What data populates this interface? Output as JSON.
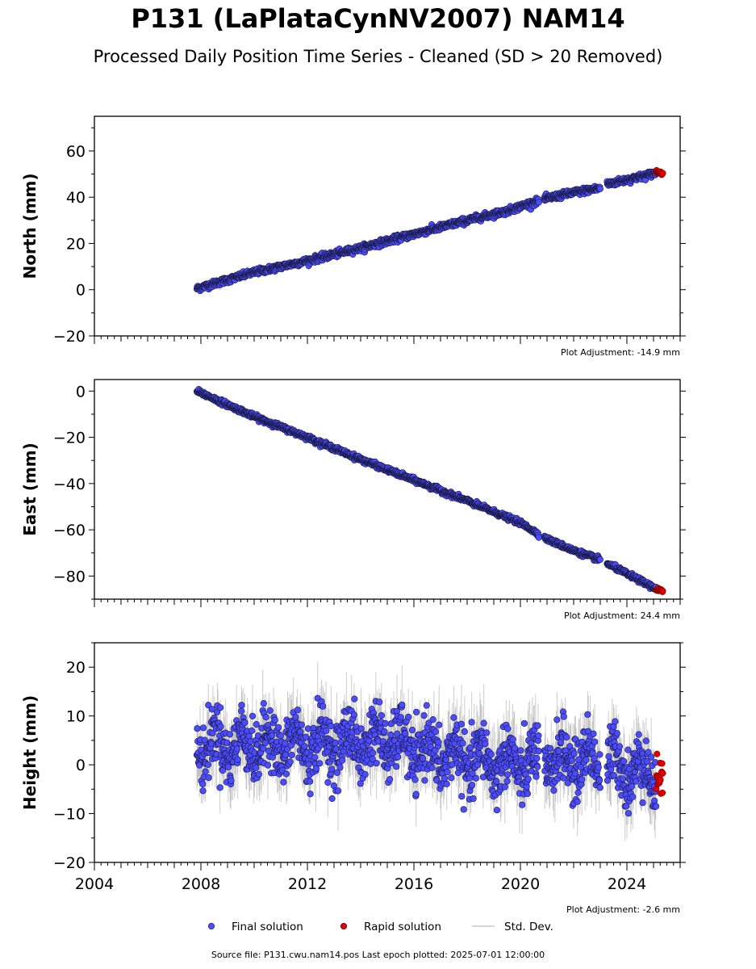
{
  "title": "P131 (LaPlataCynNV2007) NAM14",
  "subtitle": "Processed Daily Position Time Series - Cleaned (SD > 20 Removed)",
  "source_text": "Source file: P131.cwu.nam14.pos  Last epoch plotted: 2025-07-01 12:00:00",
  "legend": {
    "placement": "bottom-center",
    "items": [
      {
        "label": "Final solution",
        "color": "#4b4bff",
        "kind": "marker"
      },
      {
        "label": "Rapid solution",
        "color": "#e00000",
        "kind": "marker"
      },
      {
        "label": "Std. Dev.",
        "color": "#c8c8c8",
        "kind": "line"
      }
    ]
  },
  "colors": {
    "final": "#4b4bff",
    "final_edge": "#1a1a40",
    "rapid": "#e00000",
    "stddev": "#6e6e6e"
  },
  "chart_data": [
    {
      "type": "scatter",
      "name": "north",
      "ylabel": "North (mm)",
      "xlim": [
        2004,
        2026
      ],
      "ylim": [
        -20,
        75
      ],
      "yticks": [
        -20,
        0,
        20,
        40,
        60
      ],
      "ytick_labels": [
        "−20",
        "0",
        "20",
        "40",
        "60"
      ],
      "adjustment": "Plot Adjustment: -14.9 mm",
      "show_xtick_labels": false,
      "final_trend": [
        [
          2007.85,
          0.5
        ],
        [
          2010.0,
          7.5
        ],
        [
          2012.0,
          12.5
        ],
        [
          2014.0,
          18.0
        ],
        [
          2016.0,
          24.0
        ],
        [
          2018.0,
          30.0
        ],
        [
          2019.5,
          34.0
        ],
        [
          2020.0,
          36.0
        ],
        [
          2021.0,
          39.5
        ],
        [
          2022.0,
          42.0
        ],
        [
          2023.0,
          44.0
        ],
        [
          2023.2,
          45.5
        ],
        [
          2024.0,
          47.5
        ],
        [
          2025.1,
          50.5
        ]
      ],
      "final_noise": 1.2,
      "gaps": [
        [
          2020.7,
          2020.9
        ],
        [
          2023.0,
          2023.25
        ]
      ],
      "rapid_range": [
        [
          2025.1,
          51.0
        ],
        [
          2025.35,
          50.0
        ]
      ],
      "rapid_noise": 0.6,
      "stddev": 1.5
    },
    {
      "type": "scatter",
      "name": "east",
      "ylabel": "East (mm)",
      "xlim": [
        2004,
        2026
      ],
      "ylim": [
        -90,
        5
      ],
      "yticks": [
        -80,
        -60,
        -40,
        -20,
        0
      ],
      "ytick_labels": [
        "−80",
        "−60",
        "−40",
        "−20",
        "0"
      ],
      "adjustment": "Plot Adjustment: 24.4 mm",
      "show_xtick_labels": false,
      "final_trend": [
        [
          2007.85,
          0.0
        ],
        [
          2010.0,
          -11.0
        ],
        [
          2012.0,
          -20.0
        ],
        [
          2014.0,
          -29.5
        ],
        [
          2016.0,
          -38.5
        ],
        [
          2018.0,
          -47.5
        ],
        [
          2020.0,
          -57.0
        ],
        [
          2021.0,
          -64.0
        ],
        [
          2022.0,
          -69.0
        ],
        [
          2023.0,
          -73.0
        ],
        [
          2024.0,
          -79.0
        ],
        [
          2025.1,
          -85.5
        ]
      ],
      "final_noise": 0.9,
      "gaps": [
        [
          2020.7,
          2020.9
        ],
        [
          2023.0,
          2023.25
        ]
      ],
      "rapid_range": [
        [
          2025.1,
          -85.5
        ],
        [
          2025.35,
          -86.5
        ]
      ],
      "rapid_noise": 0.5,
      "stddev": 1.5
    },
    {
      "type": "scatter",
      "name": "height",
      "ylabel": "Height (mm)",
      "xlim": [
        2004,
        2026
      ],
      "ylim": [
        -20,
        25
      ],
      "yticks": [
        -20,
        -10,
        0,
        10,
        20
      ],
      "ytick_labels": [
        "−20",
        "−10",
        "0",
        "10",
        "20"
      ],
      "adjustment": "Plot Adjustment: -2.6 mm",
      "show_xtick_labels": true,
      "xticks": [
        2004,
        2008,
        2012,
        2016,
        2020,
        2024
      ],
      "xtick_labels": [
        "2004",
        "2008",
        "2012",
        "2016",
        "2020",
        "2024"
      ],
      "final_trend": [
        [
          2007.85,
          4.0
        ],
        [
          2012.0,
          4.0
        ],
        [
          2015.0,
          5.0
        ],
        [
          2016.0,
          3.0
        ],
        [
          2018.0,
          1.0
        ],
        [
          2020.0,
          0.0
        ],
        [
          2022.0,
          1.0
        ],
        [
          2023.0,
          0.5
        ],
        [
          2025.1,
          -2.0
        ]
      ],
      "final_noise": 5.5,
      "seasonal_amplitude": 3.0,
      "gaps": [
        [
          2020.7,
          2020.9
        ],
        [
          2023.0,
          2023.25
        ]
      ],
      "rapid_range": [
        [
          2025.1,
          -2.0
        ],
        [
          2025.35,
          -3.0
        ]
      ],
      "rapid_noise": 3.0,
      "stddev": 6.0
    }
  ]
}
